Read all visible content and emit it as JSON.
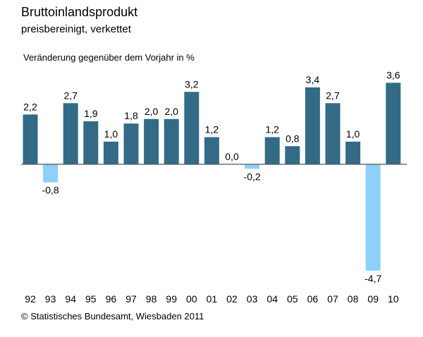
{
  "header": {
    "title": "Bruttoinlandsprodukt",
    "subtitle": "preisbereinigt, verkettet",
    "unit_label": "Veränderung gegenüber dem Vorjahr in %"
  },
  "footer": {
    "source": "© Statistisches Bundesamt, Wiesbaden 2011"
  },
  "colors": {
    "positive": "#336b87",
    "negative": "#8ed1f8",
    "axis": "#555555"
  },
  "chart_data": {
    "type": "bar",
    "categories": [
      "92",
      "93",
      "94",
      "95",
      "96",
      "97",
      "98",
      "99",
      "00",
      "01",
      "02",
      "03",
      "04",
      "05",
      "06",
      "07",
      "08",
      "09",
      "10"
    ],
    "values": [
      2.2,
      -0.8,
      2.7,
      1.9,
      1.0,
      1.8,
      2.0,
      2.0,
      3.2,
      1.2,
      0.0,
      -0.2,
      1.2,
      0.8,
      3.4,
      2.7,
      1.0,
      -4.7,
      3.6
    ],
    "value_labels": [
      "2,2",
      "-0,8",
      "2,7",
      "1,9",
      "1,0",
      "1,8",
      "2,0",
      "2,0",
      "3,2",
      "1,2",
      "0,0",
      "-0,2",
      "1,2",
      "0,8",
      "3,4",
      "2,7",
      "1,0",
      "-4,7",
      "3,6"
    ],
    "title": "Bruttoinlandsprodukt",
    "subtitle": "preisbereinigt, verkettet",
    "ylabel": "Veränderung gegenüber dem Vorjahr in %",
    "grid": false,
    "legend": "none"
  }
}
